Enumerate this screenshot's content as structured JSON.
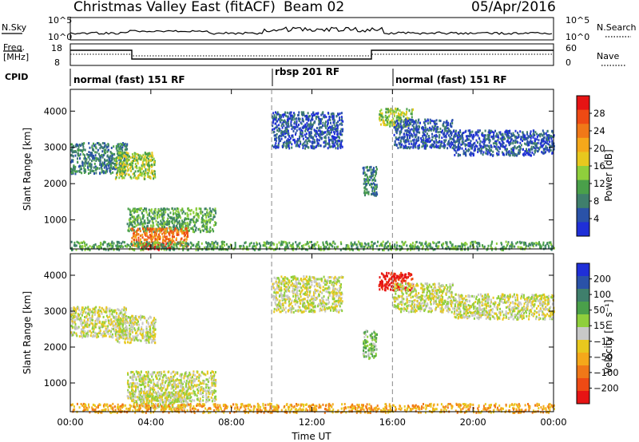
{
  "header": {
    "title": "Christmas Valley East (fitACF)",
    "beam": "Beam 02",
    "date": "05/Apr/2016"
  },
  "top_panels": {
    "nsky": {
      "label": "N.Sky",
      "ticks_left": [
        "10^5",
        "10^0"
      ]
    },
    "nsearch": {
      "label": "N.Search",
      "ticks_right": [
        "10^5",
        "10^0"
      ]
    },
    "freq": {
      "label_line1": "Freq.",
      "label_line2": "[MHz]",
      "ticks_left": [
        "18",
        "8"
      ]
    },
    "nave": {
      "label": "Nave",
      "ticks_right": [
        "60",
        "0"
      ]
    },
    "cpid": {
      "label": "CPID"
    }
  },
  "modes": [
    {
      "label": "normal (fast) 151 RF",
      "start_h": 0
    },
    {
      "label": "rbsp 201 RF",
      "start_h": 10
    },
    {
      "label": "normal (fast) 151 RF",
      "start_h": 16
    }
  ],
  "colors": {
    "power": [
      "#1f2fd8",
      "#2a52a8",
      "#3f7f6c",
      "#4aa04a",
      "#8fcf3c",
      "#e8c81e",
      "#f5a81a",
      "#f07818",
      "#ee4a14",
      "#e61414"
    ],
    "velocity": [
      "#1f2fd8",
      "#2a52a8",
      "#3f7f6c",
      "#4aa04a",
      "#8fcf3c",
      "#c8c8c8",
      "#e8c81e",
      "#f5a81a",
      "#f07818",
      "#ee4a14",
      "#e61414"
    ],
    "ground": "#c8c8c8"
  },
  "chart_data": [
    {
      "type": "heatmap",
      "quantity": "power",
      "ylabel": "Slant Range [km]",
      "xlabel": "",
      "yticks": [
        1000,
        2000,
        3000,
        4000
      ],
      "ylim": [
        200,
        4600
      ],
      "xticks": [
        "00:00",
        "04:00",
        "08:00",
        "12:00",
        "16:00",
        "20:00",
        "00:00"
      ],
      "xlim_hours": [
        0,
        24
      ],
      "colorbar": {
        "label": "Power [dB]",
        "ticks": [
          "28",
          "24",
          "20",
          "16",
          "12",
          "8",
          "4"
        ],
        "range": [
          0,
          30
        ]
      },
      "regions": [
        {
          "h0": 0.0,
          "h1": 2.8,
          "r0": 2300,
          "r1": 3150,
          "level": 2
        },
        {
          "h0": 2.2,
          "h1": 4.2,
          "r0": 2150,
          "r1": 2900,
          "level": 4
        },
        {
          "h0": 2.8,
          "h1": 7.2,
          "r0": 700,
          "r1": 1350,
          "level": 3
        },
        {
          "h0": 3.0,
          "h1": 5.8,
          "r0": 300,
          "r1": 800,
          "level": 7
        },
        {
          "h0": 3.5,
          "h1": 5.0,
          "r0": 200,
          "r1": 400,
          "level": 9
        },
        {
          "h0": 0.0,
          "h1": 24.0,
          "r0": 200,
          "r1": 430,
          "level": 3
        },
        {
          "h0": 10.0,
          "h1": 13.5,
          "r0": 3000,
          "r1": 4000,
          "level": 1
        },
        {
          "h0": 14.5,
          "h1": 15.2,
          "r0": 1700,
          "r1": 2500,
          "level": 2
        },
        {
          "h0": 15.3,
          "h1": 17.0,
          "r0": 3600,
          "r1": 4100,
          "level": 4
        },
        {
          "h0": 19.0,
          "h1": 24.0,
          "r0": 2800,
          "r1": 3500,
          "level": 1
        },
        {
          "h0": 16.0,
          "h1": 19.0,
          "r0": 3000,
          "r1": 3800,
          "level": 1
        }
      ]
    },
    {
      "type": "heatmap",
      "quantity": "velocity",
      "ylabel": "Slant Range [km]",
      "xlabel": "Time UT",
      "yticks": [
        1000,
        2000,
        3000,
        4000
      ],
      "ylim": [
        200,
        4600
      ],
      "xticks": [
        "00:00",
        "04:00",
        "08:00",
        "12:00",
        "16:00",
        "20:00",
        "00:00"
      ],
      "xlim_hours": [
        0,
        24
      ],
      "colorbar": {
        "label": "Velocity [m s⁻¹]",
        "ticks": [
          "200",
          "100",
          "50",
          "15",
          "−15",
          "−50",
          "−100",
          "−200"
        ],
        "range": [
          -250,
          250
        ]
      },
      "regions": [
        {
          "h0": 0.0,
          "h1": 2.8,
          "r0": 2300,
          "r1": 3150,
          "level": 5
        },
        {
          "h0": 2.2,
          "h1": 4.2,
          "r0": 2150,
          "r1": 2900,
          "level": 5
        },
        {
          "h0": 2.8,
          "h1": 7.2,
          "r0": 500,
          "r1": 1350,
          "level": 5
        },
        {
          "h0": 3.0,
          "h1": 5.8,
          "r0": 300,
          "r1": 800,
          "level": 5
        },
        {
          "h0": 0.0,
          "h1": 24.0,
          "r0": 200,
          "r1": 450,
          "level": 7
        },
        {
          "h0": 10.0,
          "h1": 13.5,
          "r0": 3000,
          "r1": 4000,
          "level": 5
        },
        {
          "h0": 14.5,
          "h1": 15.2,
          "r0": 1700,
          "r1": 2500,
          "level": 4
        },
        {
          "h0": 15.3,
          "h1": 17.0,
          "r0": 3600,
          "r1": 4100,
          "level": 10
        },
        {
          "h0": 19.0,
          "h1": 24.0,
          "r0": 2800,
          "r1": 3500,
          "level": 5
        },
        {
          "h0": 16.0,
          "h1": 19.0,
          "r0": 3000,
          "r1": 3800,
          "level": 5
        }
      ]
    }
  ]
}
